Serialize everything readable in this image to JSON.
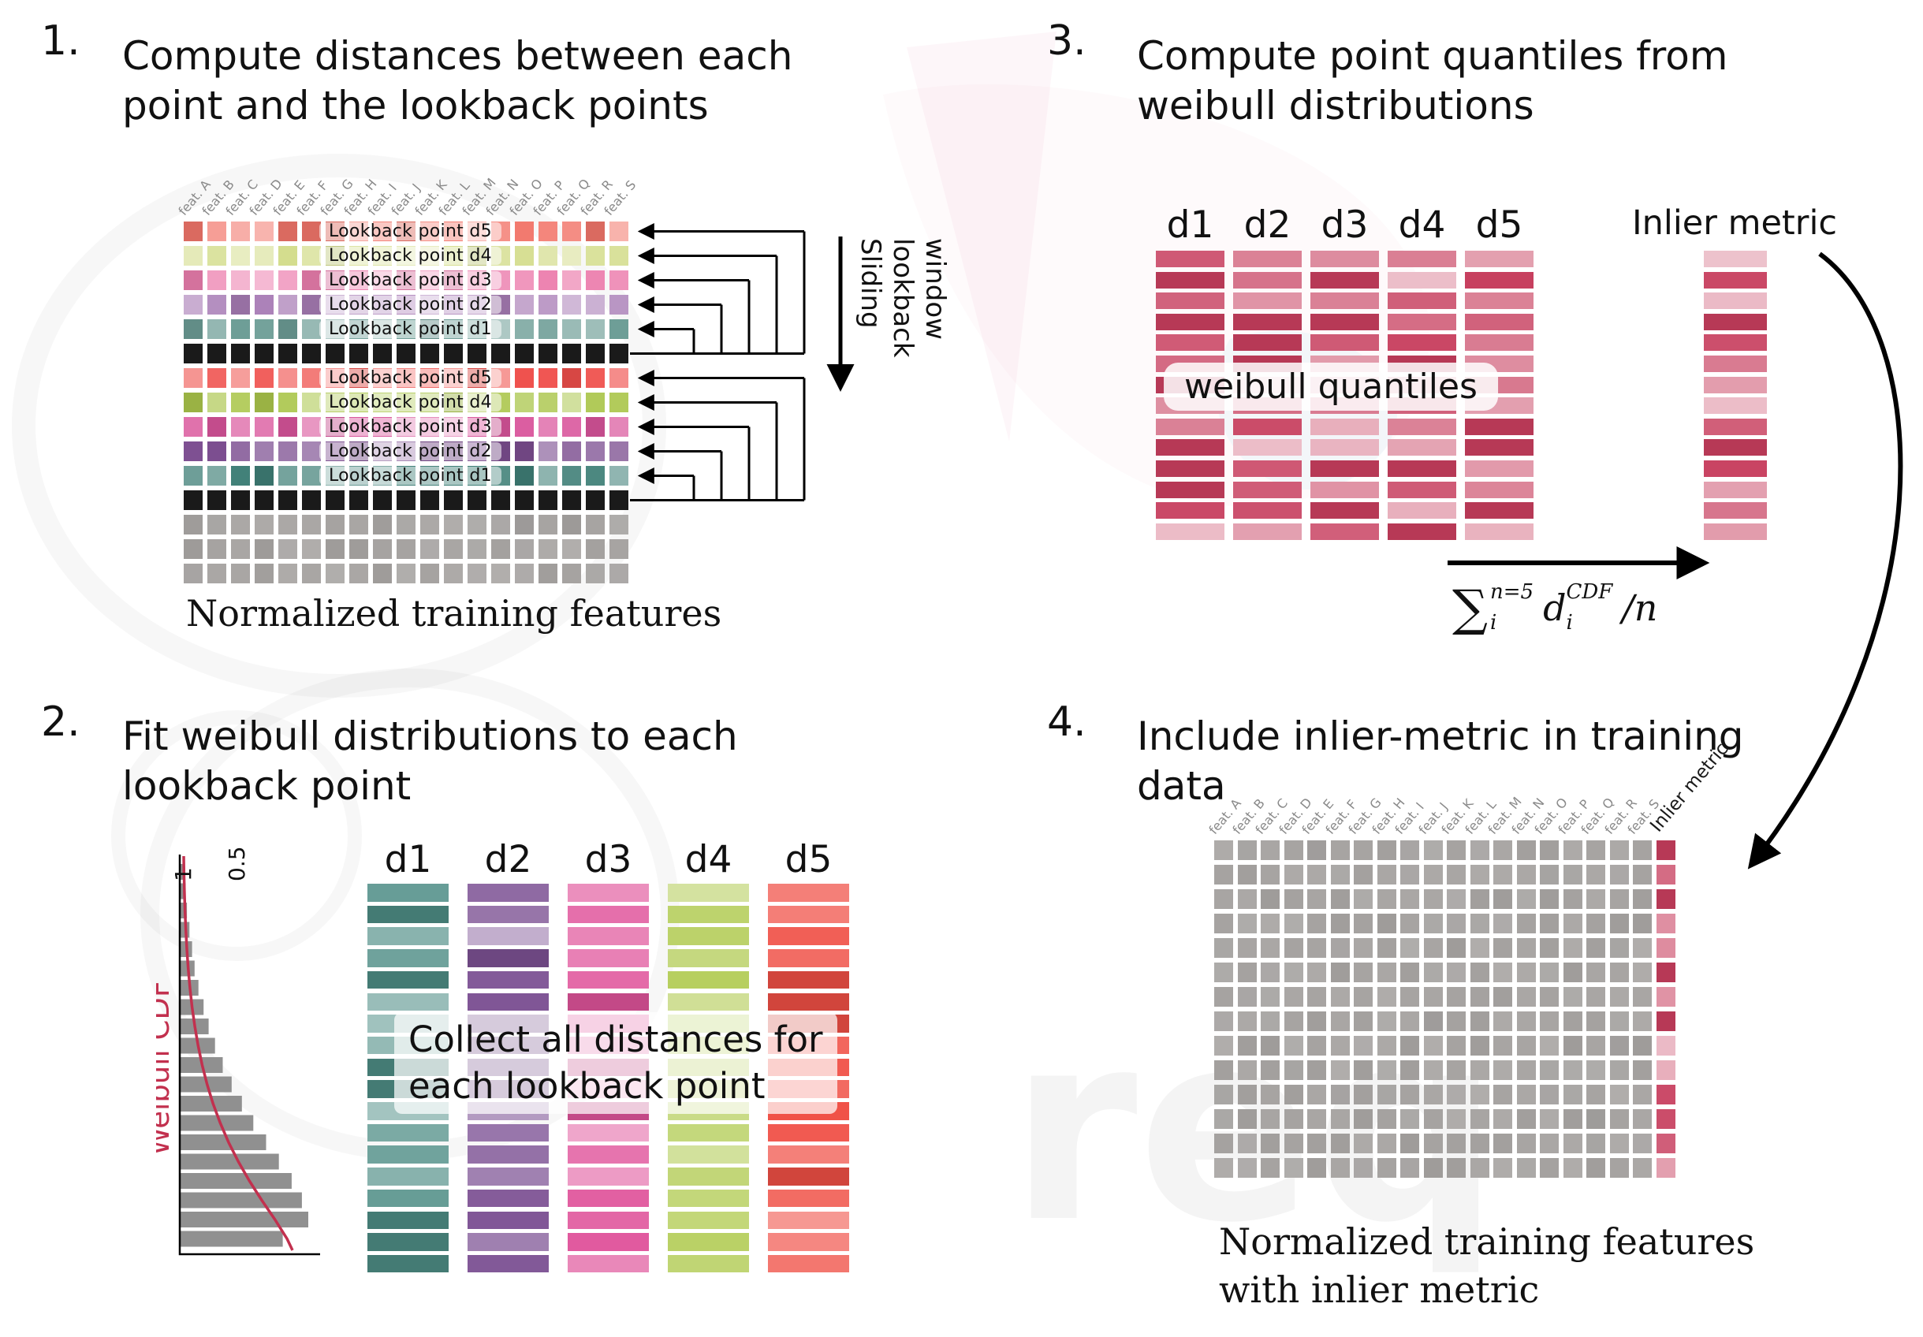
{
  "colors": {
    "crimson": "#c73e5e",
    "gray_cell": "#a5a2a0",
    "black_cell": "#1a1a1a",
    "hist_bar": "#909090",
    "weibull_curve": "#c2304e",
    "group1": {
      "d5": "#f2766b",
      "d4": "#d4dd8d",
      "d3": "#ec7fae",
      "d2": "#a87cb5",
      "d1": "#6d9d96"
    },
    "group2": {
      "d5": "#ef4f4b",
      "d4": "#abc64c",
      "d3": "#d9549b",
      "d2": "#7c4e90",
      "d1": "#3f7f77"
    },
    "panel2": {
      "d1": "#4e8d85",
      "d2": "#7d5294",
      "d3": "#e0549b",
      "d4": "#b3cc56",
      "d5": "#f04f45"
    }
  },
  "features": [
    "feat. A",
    "feat. B",
    "feat. C",
    "feat. D",
    "feat. E",
    "feat. F",
    "feat. G",
    "feat. H",
    "feat. I",
    "feat. J",
    "feat. K",
    "feat. L",
    "feat. M",
    "feat. N",
    "feat. O",
    "feat. P",
    "feat. Q",
    "feat. R",
    "feat. S"
  ],
  "panel1": {
    "number": "1.",
    "title_line1": "Compute distances between each",
    "title_line2": "point and the lookback points",
    "lookback_labels": [
      "Lookback point d5",
      "Lookback point d4",
      "Lookback point d3",
      "Lookback point d2",
      "Lookback point d1"
    ],
    "row_pattern": [
      "d5",
      "d4",
      "d3",
      "d2",
      "d1",
      "black",
      "d5",
      "d4",
      "d3",
      "d2",
      "d1",
      "black",
      "gray",
      "gray",
      "gray"
    ],
    "sliding_lines": [
      "Sliding",
      "lookback",
      "window"
    ],
    "caption": "Normalized training features"
  },
  "panel2": {
    "number": "2.",
    "title_line1": "Fit weibull distributions to each",
    "title_line2": "lookback point",
    "col_labels": [
      "d1",
      "d2",
      "d3",
      "d4",
      "d5"
    ],
    "bars_per_column": 18,
    "overlay_line1": "Collect all distances for",
    "overlay_line2": "each lookback point",
    "chart": {
      "ylabel": "Weibull CDF",
      "tick_1": "1",
      "tick_05": "0.5",
      "bar_fracs": [
        0.03,
        0.04,
        0.05,
        0.07,
        0.09,
        0.11,
        0.14,
        0.18,
        0.22,
        0.27,
        0.33,
        0.4,
        0.48,
        0.57,
        0.67,
        0.77,
        0.87,
        0.95,
        1.0,
        0.8
      ]
    }
  },
  "panel3": {
    "number": "3.",
    "title_line1": "Compute point quantiles from",
    "title_line2": "weibull distributions",
    "col_labels": [
      "d1",
      "d2",
      "d3",
      "d4",
      "d5"
    ],
    "bars_per_column": 14,
    "overlay": "weibull quantiles",
    "inlier_label": "Inlier metric",
    "formula": {
      "op": "∑",
      "op_sup": "n=5",
      "op_sub": "i",
      "var": "d",
      "var_sup": "CDF",
      "var_sub": "i",
      "tail": "/n"
    }
  },
  "panel4": {
    "number": "4.",
    "title_line1": "Include inlier-metric in training",
    "title_line2": "data",
    "inlier_header": "Inlier metric",
    "num_rows": 14,
    "caption_line1": "Normalized training features",
    "caption_line2": "with inlier metric"
  }
}
